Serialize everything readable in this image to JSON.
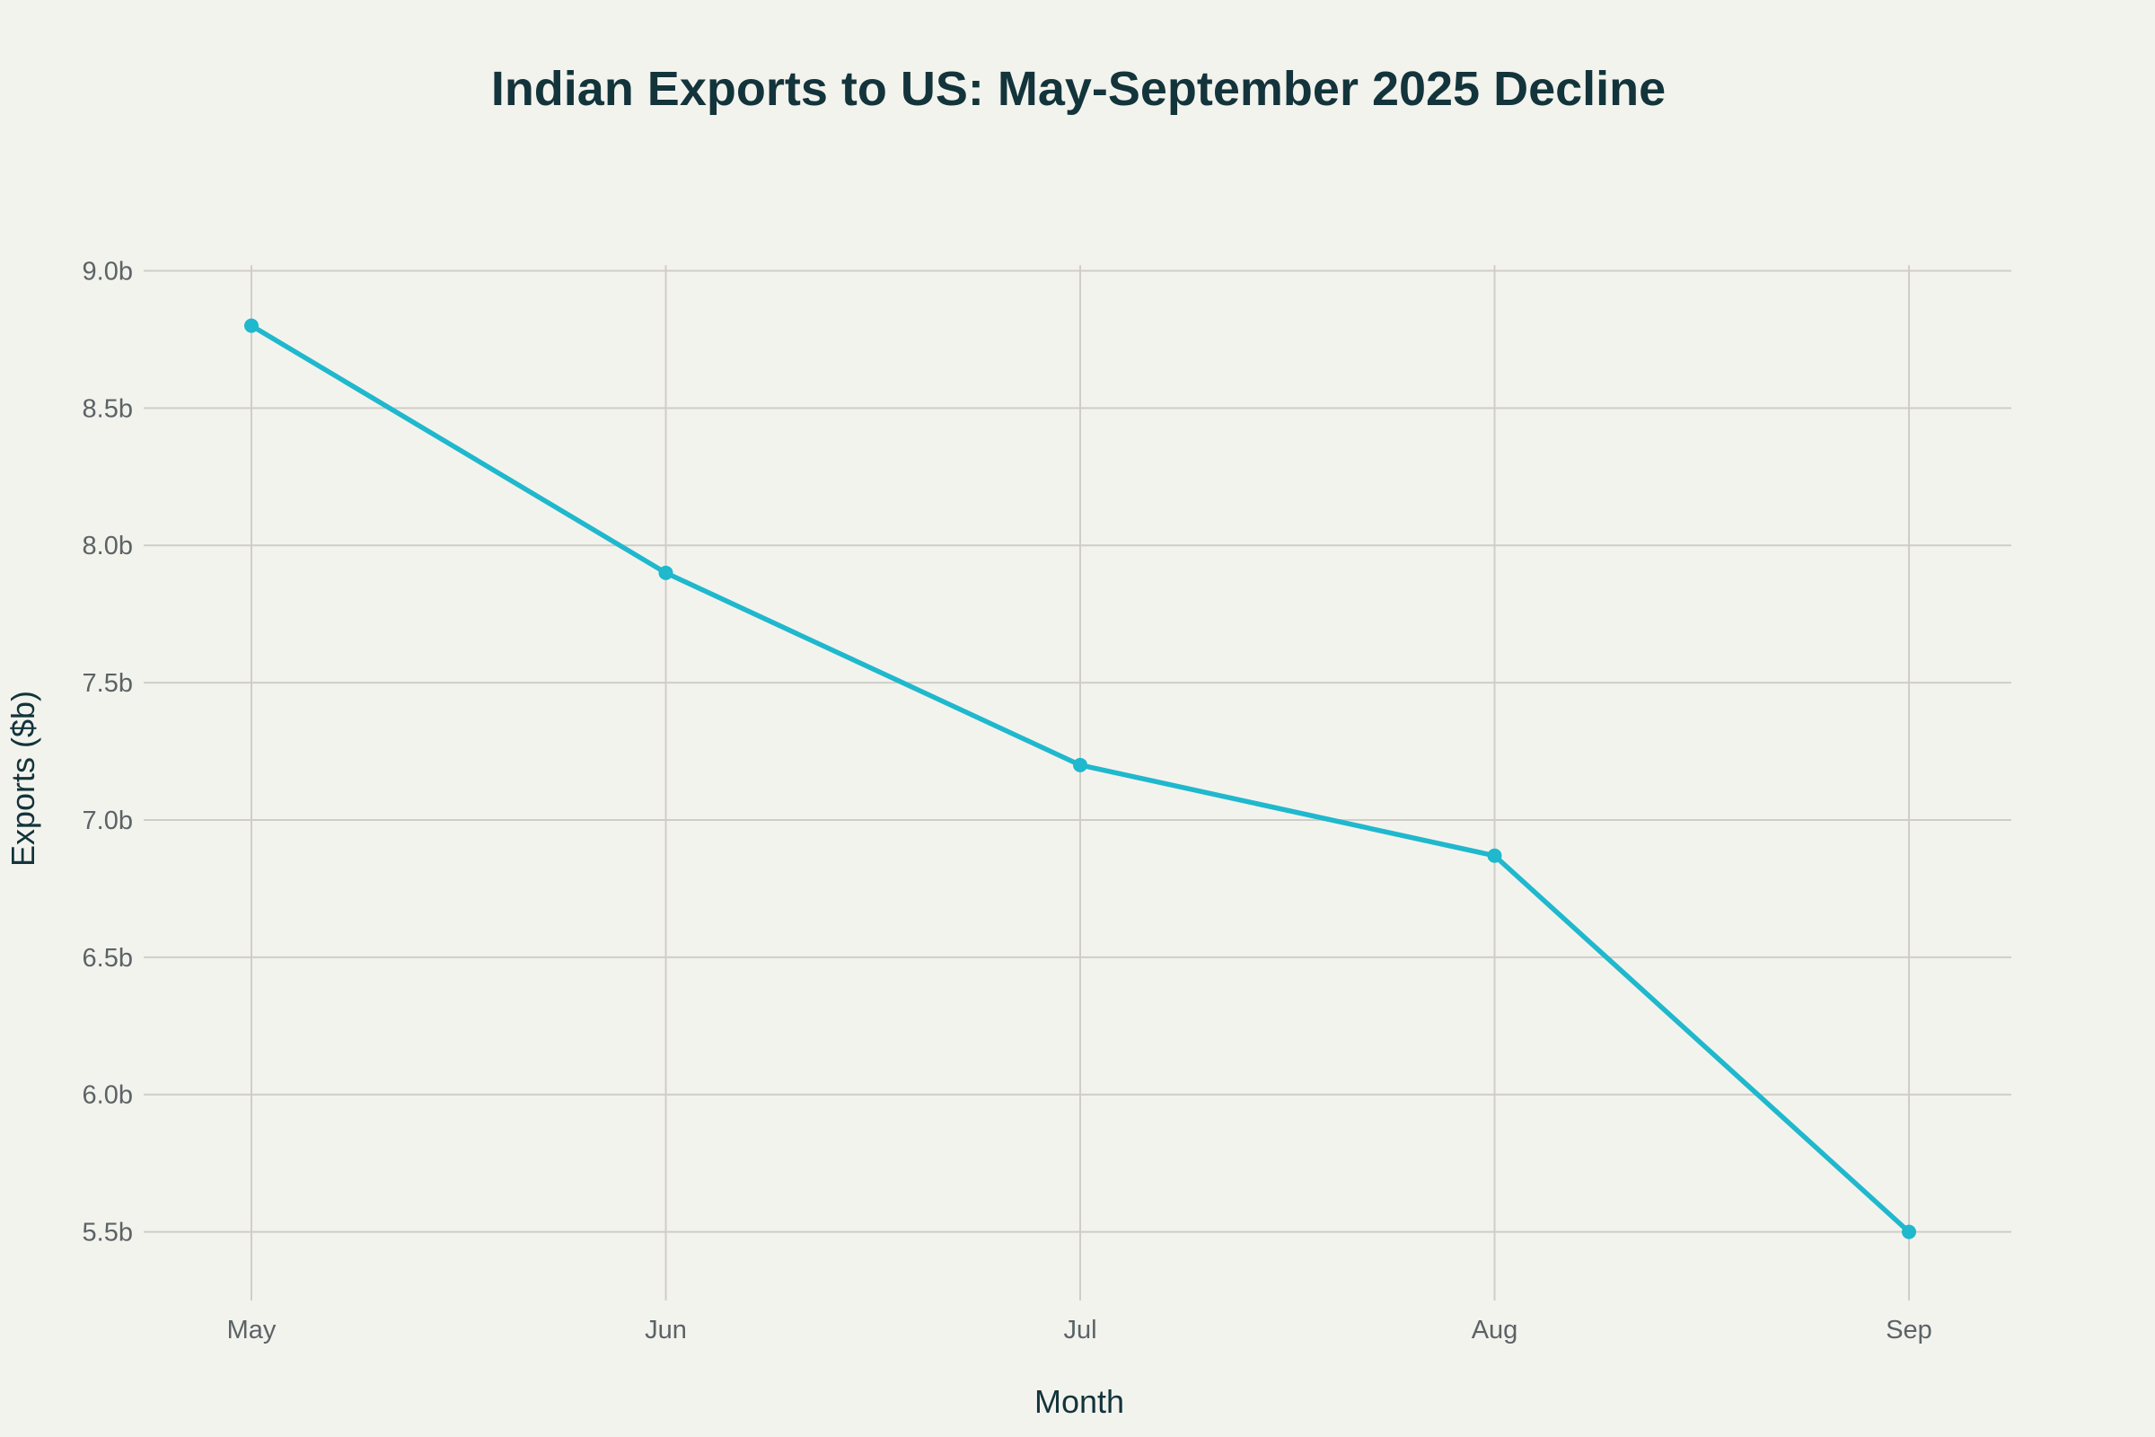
{
  "chart_data": {
    "type": "line",
    "title": "Indian Exports to US: May-September 2025 Decline",
    "xlabel": "Month",
    "ylabel": "Exports ($b)",
    "categories": [
      "May",
      "Jun",
      "Jul",
      "Aug",
      "Sep"
    ],
    "series": [
      {
        "values": [
          8.8,
          7.9,
          7.2,
          6.87,
          5.5
        ]
      }
    ],
    "ylim": [
      5.25,
      9.02
    ],
    "yticks": [
      5.5,
      6.0,
      6.5,
      7.0,
      7.5,
      8.0,
      8.5,
      9.0
    ],
    "ytick_labels": [
      "5.5b",
      "6.0b",
      "6.5b",
      "7.0b",
      "7.5b",
      "8.0b",
      "8.5b",
      "9.0b"
    ],
    "grid": true,
    "markers": true,
    "legend": "none",
    "colors": {
      "line": "#1fb8cd",
      "background": "#f3f3ee",
      "grid": "#d0cdc8",
      "title": "#13343b"
    }
  }
}
